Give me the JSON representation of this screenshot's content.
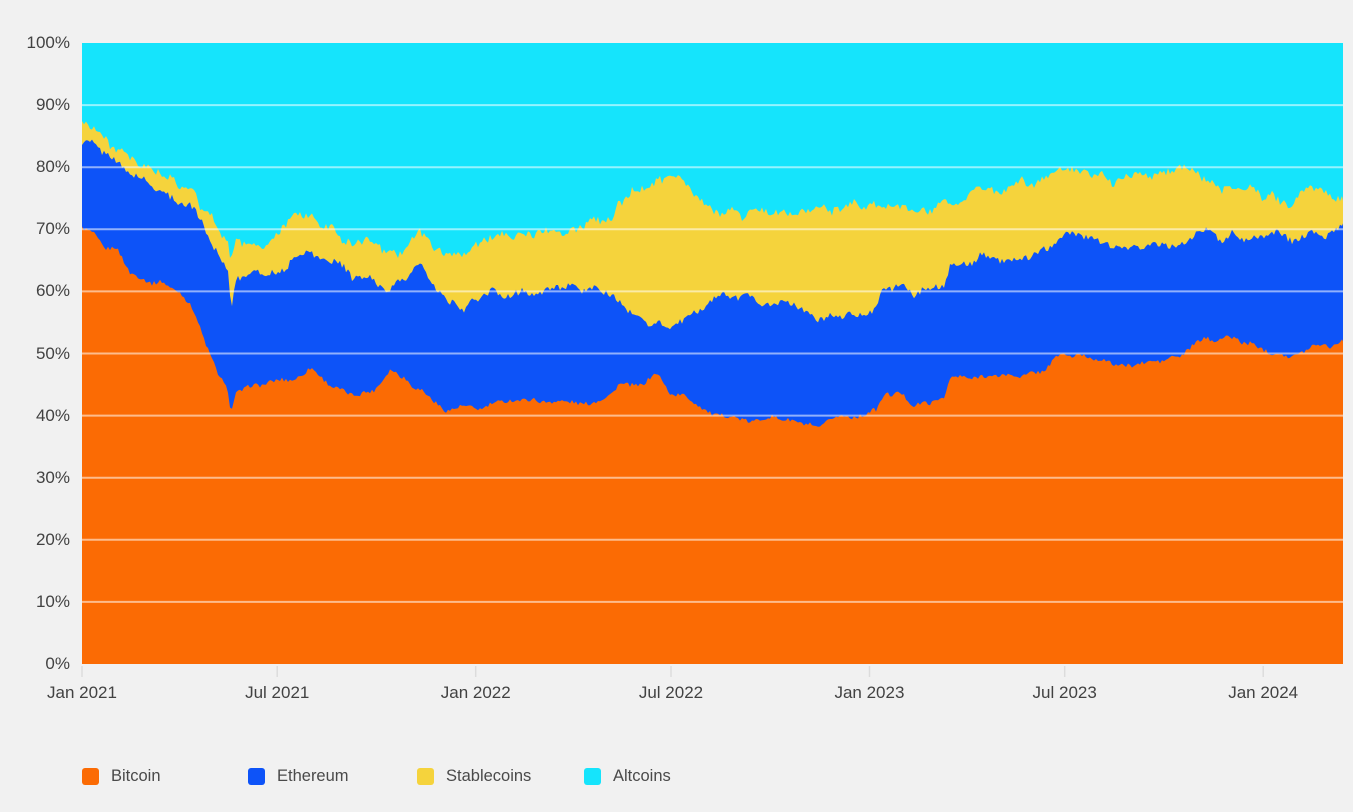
{
  "colors": {
    "background": "#f1f1f1",
    "axis_text": "#424242",
    "gridline": "rgba(255,255,255,0.55)",
    "axis_tick": "#dcdcdc"
  },
  "chart_data": {
    "type": "area",
    "stacked": true,
    "unit": "%",
    "title": "",
    "xlabel": "",
    "ylabel": "",
    "ylim": [
      0,
      100
    ],
    "grid": true,
    "legend_position": "bottom",
    "x_range": [
      "2021-01-01",
      "2024-03-15"
    ],
    "x_tick_labels": [
      "Jan 2021",
      "Jul 2021",
      "Jan 2022",
      "Jul 2022",
      "Jan 2023",
      "Jul 2023",
      "Jan 2024"
    ],
    "x_tick_dates": [
      "2021-01-01",
      "2021-07-01",
      "2022-01-01",
      "2022-07-01",
      "2023-01-01",
      "2023-07-01",
      "2024-01-01"
    ],
    "y_tick_labels": [
      "0%",
      "10%",
      "20%",
      "30%",
      "40%",
      "50%",
      "60%",
      "70%",
      "80%",
      "90%",
      "100%"
    ],
    "series_order_bottom_to_top": [
      "Bitcoin",
      "Ethereum",
      "Stablecoins",
      "Altcoins"
    ],
    "series": [
      {
        "name": "Bitcoin",
        "color": "#fb6b04"
      },
      {
        "name": "Ethereum",
        "color": "#0d53f8"
      },
      {
        "name": "Stablecoins",
        "color": "#f5d33c"
      },
      {
        "name": "Altcoins",
        "color": "#15e4fc"
      }
    ],
    "dates": [
      "2021-01-01",
      "2021-01-12",
      "2021-01-22",
      "2021-02-01",
      "2021-02-14",
      "2021-02-28",
      "2021-03-15",
      "2021-03-31",
      "2021-04-14",
      "2021-04-25",
      "2021-05-08",
      "2021-05-17",
      "2021-05-19",
      "2021-05-23",
      "2021-06-06",
      "2021-06-22",
      "2021-07-07",
      "2021-07-21",
      "2021-08-01",
      "2021-08-15",
      "2021-09-01",
      "2021-09-15",
      "2021-09-29",
      "2021-10-13",
      "2021-10-27",
      "2021-11-09",
      "2021-11-21",
      "2021-12-05",
      "2021-12-20",
      "2022-01-05",
      "2022-01-22",
      "2022-02-08",
      "2022-02-24",
      "2022-03-12",
      "2022-03-28",
      "2022-04-12",
      "2022-04-28",
      "2022-05-09",
      "2022-05-13",
      "2022-05-27",
      "2022-06-10",
      "2022-06-19",
      "2022-07-01",
      "2022-07-16",
      "2022-07-30",
      "2022-08-14",
      "2022-08-28",
      "2022-09-11",
      "2022-09-25",
      "2022-10-10",
      "2022-10-25",
      "2022-11-07",
      "2022-11-10",
      "2022-11-24",
      "2022-12-10",
      "2022-12-26",
      "2023-01-08",
      "2023-01-15",
      "2023-01-29",
      "2023-02-12",
      "2023-02-26",
      "2023-03-12",
      "2023-03-17",
      "2023-03-31",
      "2023-04-15",
      "2023-04-30",
      "2023-05-15",
      "2023-05-31",
      "2023-06-11",
      "2023-06-25",
      "2023-07-08",
      "2023-07-22",
      "2023-08-06",
      "2023-08-20",
      "2023-09-03",
      "2023-09-17",
      "2023-10-01",
      "2023-10-15",
      "2023-10-29",
      "2023-11-09",
      "2023-11-23",
      "2023-12-07",
      "2023-12-21",
      "2024-01-04",
      "2024-01-13",
      "2024-01-24",
      "2024-02-07",
      "2024-02-21",
      "2024-03-04",
      "2024-03-15"
    ],
    "values": {
      "Bitcoin": [
        70.5,
        69.0,
        66.8,
        67.2,
        62.5,
        61.8,
        61.3,
        59.8,
        57.5,
        52.0,
        46.5,
        44.0,
        40.3,
        43.8,
        44.8,
        45.2,
        45.5,
        46.3,
        47.3,
        45.5,
        43.8,
        43.3,
        44.5,
        47.2,
        46.5,
        44.0,
        42.8,
        41.0,
        41.4,
        41.2,
        41.8,
        42.2,
        42.6,
        42.3,
        42.0,
        42.2,
        42.5,
        43.8,
        44.9,
        44.5,
        45.8,
        46.9,
        43.5,
        42.8,
        41.0,
        39.8,
        39.5,
        39.2,
        39.8,
        39.5,
        39.3,
        38.8,
        38.2,
        39.0,
        39.8,
        40.2,
        40.8,
        43.5,
        43.8,
        41.8,
        42.3,
        43.0,
        45.7,
        45.9,
        46.2,
        46.0,
        46.5,
        46.8,
        47.0,
        49.4,
        49.8,
        49.3,
        48.8,
        48.4,
        48.1,
        48.5,
        48.9,
        49.6,
        51.5,
        52.7,
        52.0,
        52.3,
        51.6,
        50.5,
        50.0,
        49.2,
        50.3,
        51.5,
        51.0,
        51.9
      ],
      "Ethereum": [
        14.1,
        14.5,
        15.2,
        13.7,
        16.0,
        16.0,
        14.9,
        15.0,
        16.0,
        17.8,
        20.0,
        19.0,
        15.9,
        18.2,
        18.2,
        17.4,
        18.5,
        20.0,
        19.5,
        19.5,
        19.7,
        18.9,
        17.0,
        13.6,
        15.0,
        20.5,
        18.7,
        17.5,
        16.1,
        17.8,
        18.0,
        18.0,
        17.4,
        18.0,
        18.5,
        18.1,
        17.3,
        15.2,
        13.1,
        12.0,
        9.2,
        8.9,
        11.3,
        13.2,
        16.5,
        19.5,
        19.3,
        20.5,
        18.7,
        18.3,
        18.2,
        17.2,
        17.1,
        16.8,
        16.4,
        16.3,
        17.2,
        17.5,
        17.5,
        18.0,
        17.7,
        17.5,
        18.2,
        18.6,
        19.3,
        19.0,
        19.3,
        19.4,
        19.3,
        19.4,
        19.7,
        19.5,
        19.4,
        19.3,
        19.0,
        18.8,
        18.4,
        18.1,
        17.3,
        16.6,
        16.8,
        16.7,
        16.8,
        18.5,
        19.8,
        19.7,
        18.3,
        17.5,
        18.5,
        18.3
      ],
      "Stablecoins": [
        3.2,
        3.0,
        2.8,
        2.4,
        2.8,
        2.8,
        2.8,
        2.8,
        2.9,
        3.1,
        3.5,
        5.0,
        8.3,
        6.3,
        5.0,
        4.7,
        5.5,
        7.0,
        5.4,
        5.5,
        5.5,
        6.1,
        6.0,
        5.2,
        5.0,
        5.5,
        6.5,
        7.5,
        8.0,
        8.0,
        8.7,
        9.1,
        9.8,
        9.7,
        9.2,
        10.0,
        11.2,
        13.0,
        16.5,
        19.0,
        22.0,
        23.2,
        22.5,
        21.0,
        17.5,
        13.6,
        13.7,
        12.7,
        14.0,
        14.5,
        15.0,
        16.8,
        18.0,
        17.8,
        17.4,
        17.3,
        16.0,
        13.3,
        12.5,
        13.1,
        13.3,
        14.0,
        10.3,
        10.5,
        10.8,
        11.0,
        11.0,
        11.1,
        11.5,
        11.0,
        10.7,
        10.5,
        10.1,
        10.3,
        11.6,
        11.7,
        11.9,
        11.7,
        10.0,
        8.5,
        8.4,
        7.9,
        8.1,
        6.6,
        5.2,
        5.4,
        6.8,
        7.6,
        6.5,
        4.7
      ],
      "Altcoins": [
        12.2,
        13.5,
        15.2,
        16.7,
        18.7,
        19.4,
        21.0,
        22.4,
        23.6,
        27.1,
        30.0,
        32.0,
        35.5,
        31.7,
        32.0,
        32.7,
        30.5,
        26.7,
        27.8,
        29.5,
        31.0,
        31.7,
        32.5,
        34.0,
        33.5,
        30.0,
        32.0,
        34.0,
        34.5,
        33.0,
        31.5,
        30.7,
        30.2,
        30.0,
        30.3,
        29.7,
        29.0,
        28.0,
        25.5,
        24.5,
        23.0,
        21.0,
        22.7,
        23.0,
        25.0,
        27.1,
        27.5,
        27.6,
        27.5,
        27.7,
        27.5,
        27.2,
        26.7,
        26.4,
        26.4,
        26.2,
        26.0,
        25.7,
        26.2,
        27.1,
        26.7,
        25.5,
        25.8,
        25.0,
        23.7,
        24.0,
        23.2,
        22.7,
        22.2,
        20.2,
        19.8,
        20.7,
        21.7,
        22.0,
        21.3,
        21.0,
        20.8,
        20.6,
        21.2,
        22.2,
        22.8,
        23.1,
        23.5,
        24.4,
        25.0,
        25.7,
        24.6,
        23.4,
        24.0,
        25.1
      ]
    }
  }
}
